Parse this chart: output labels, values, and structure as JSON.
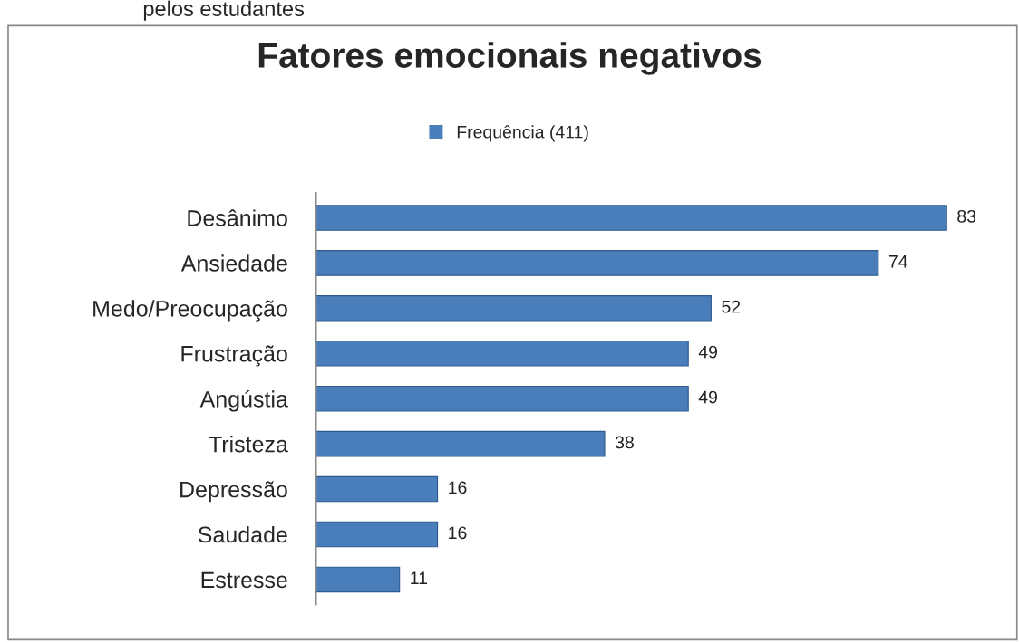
{
  "chart_data": {
    "type": "bar",
    "orientation": "horizontal",
    "title": "Fatores emocionais negativos",
    "annotations": [
      "pelos estudantes"
    ],
    "categories": [
      "Desânimo",
      "Ansiedade",
      "Medo/Preocupação",
      "Frustração",
      "Angústia",
      "Tristeza",
      "Depressão",
      "Saudade",
      "Estresse"
    ],
    "series": [
      {
        "name": "Frequência (411)",
        "color": "#4a7ebb",
        "values": [
          83,
          74,
          52,
          49,
          49,
          38,
          16,
          16,
          11
        ]
      }
    ],
    "data_labels": true,
    "legend": "top",
    "grid": false
  }
}
